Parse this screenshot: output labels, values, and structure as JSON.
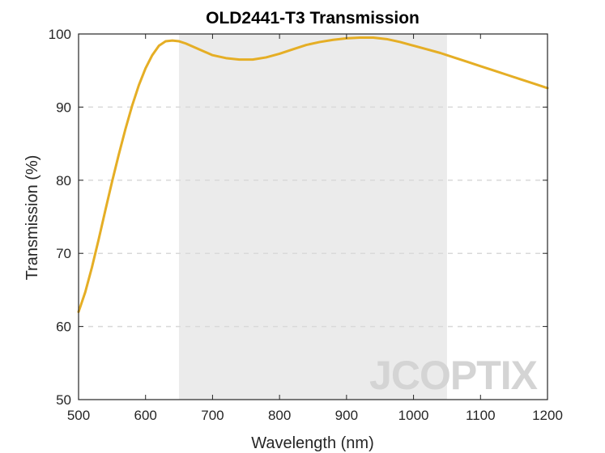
{
  "chart_data": {
    "type": "line",
    "title": "OLD2441-T3 Transmission",
    "xlabel": "Wavelength (nm)",
    "ylabel": "Transmission (%)",
    "xlim": [
      500,
      1200
    ],
    "ylim": [
      50,
      100
    ],
    "xticks": [
      "500",
      "600",
      "700",
      "800",
      "900",
      "1000",
      "1100",
      "1200"
    ],
    "yticks": [
      "50",
      "60",
      "70",
      "80",
      "90",
      "100"
    ],
    "grid": "horizontal-dashed",
    "shaded_band": [
      650,
      1050
    ],
    "series": [
      {
        "name": "",
        "color": "#e5ae25",
        "x": [
          500,
          510,
          520,
          530,
          540,
          550,
          560,
          570,
          580,
          590,
          600,
          610,
          620,
          630,
          640,
          650,
          660,
          680,
          700,
          720,
          740,
          760,
          780,
          800,
          820,
          840,
          860,
          880,
          900,
          920,
          940,
          960,
          980,
          1000,
          1020,
          1040,
          1060,
          1080,
          1100,
          1120,
          1140,
          1160,
          1180,
          1200
        ],
        "y": [
          62.0,
          64.7,
          68.1,
          71.9,
          75.9,
          79.8,
          83.5,
          87.0,
          90.2,
          93.0,
          95.3,
          97.1,
          98.4,
          99.0,
          99.1,
          99.0,
          98.7,
          97.9,
          97.1,
          96.7,
          96.5,
          96.5,
          96.8,
          97.3,
          97.9,
          98.5,
          98.9,
          99.2,
          99.4,
          99.5,
          99.5,
          99.3,
          98.9,
          98.4,
          97.9,
          97.4,
          96.8,
          96.2,
          95.6,
          95.0,
          94.4,
          93.8,
          93.2,
          92.6
        ]
      }
    ]
  },
  "colors": {
    "band": "#ebebeb",
    "grid": "#d9d9d9",
    "axis": "#262626"
  },
  "watermark": {
    "text": "JCOPTIX"
  }
}
